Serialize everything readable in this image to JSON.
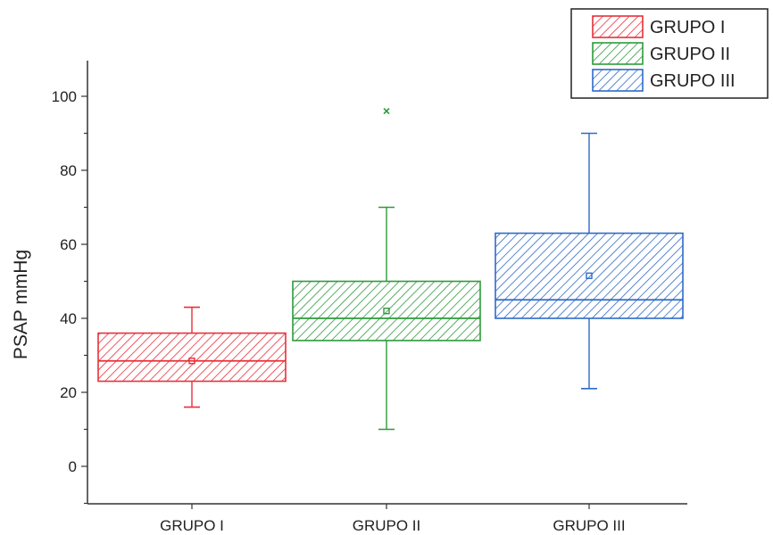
{
  "chart_data": {
    "type": "box",
    "ylabel": "PSAP mmHg",
    "xlabel": "",
    "ylim": [
      -10,
      110
    ],
    "yticks": [
      0,
      20,
      40,
      60,
      80,
      100
    ],
    "legend_position": "top-right",
    "series": [
      {
        "name": "GRUPO I",
        "color": "#e8303a",
        "min": 16,
        "q1": 23,
        "median": 28.5,
        "q3": 36,
        "max": 43,
        "mean": 28.5,
        "outliers": []
      },
      {
        "name": "GRUPO II",
        "color": "#2e9a3c",
        "min": 10,
        "q1": 34,
        "median": 40,
        "q3": 50,
        "max": 70,
        "mean": 42,
        "outliers": [
          96
        ]
      },
      {
        "name": "GRUPO III",
        "color": "#2e6ac8",
        "min": 21,
        "q1": 40,
        "median": 45,
        "q3": 63,
        "max": 90,
        "mean": 51.5,
        "outliers": []
      }
    ]
  }
}
